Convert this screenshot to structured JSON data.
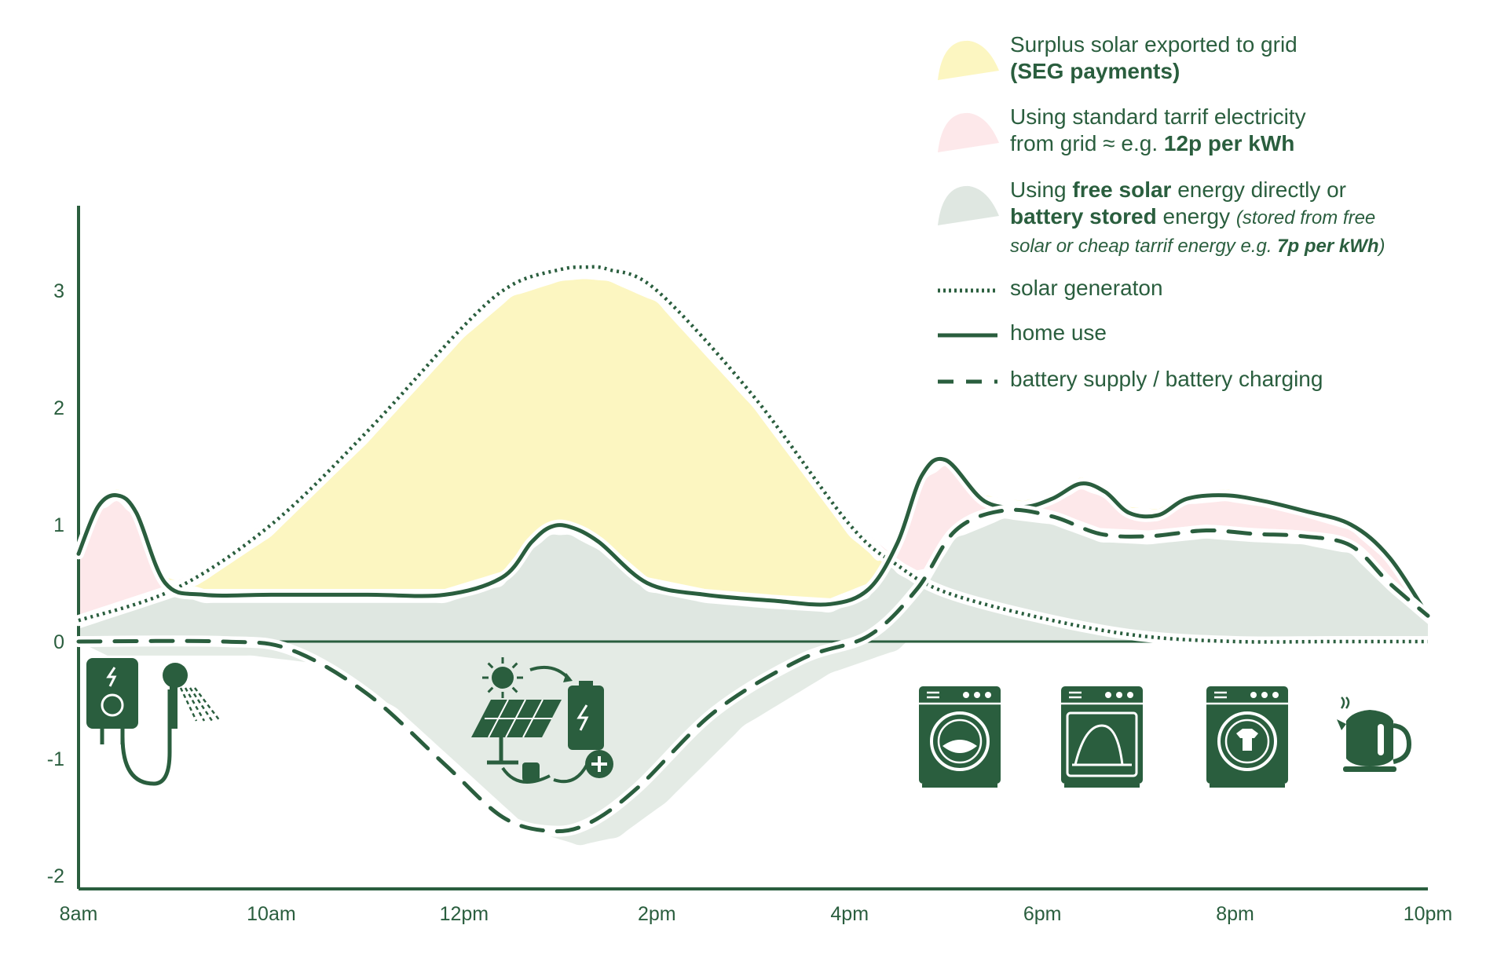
{
  "chart_data": {
    "type": "area",
    "title": "",
    "xlabel": "",
    "ylabel": "",
    "x_ticks": [
      "8am",
      "10am",
      "12pm",
      "2pm",
      "4pm",
      "6pm",
      "8pm",
      "10pm"
    ],
    "y_ticks": [
      "3",
      "2",
      "1",
      "0",
      "-1",
      "-2"
    ],
    "xlim": [
      8,
      22
    ],
    "ylim": [
      -2.1,
      3.7
    ],
    "grid": false,
    "legend_position": "top-right",
    "series": [
      {
        "name": "solar generaton",
        "style": "dotted",
        "x": [
          8,
          9,
          10,
          11,
          12,
          12.5,
          13,
          13.25,
          13.5,
          14,
          15,
          16,
          16.5,
          17,
          18,
          19,
          20,
          21,
          22
        ],
        "y": [
          0.18,
          0.45,
          1.0,
          1.8,
          2.7,
          3.05,
          3.18,
          3.2,
          3.18,
          3.0,
          2.1,
          1.0,
          0.65,
          0.42,
          0.2,
          0.05,
          0.0,
          0.0,
          0.0
        ]
      },
      {
        "name": "home use",
        "style": "solid",
        "x": [
          8,
          8.2,
          8.4,
          8.6,
          8.9,
          9.3,
          10,
          11,
          11.8,
          12.4,
          12.7,
          12.9,
          13.1,
          13.4,
          13.9,
          14.5,
          15.2,
          15.8,
          16.2,
          16.5,
          16.75,
          17.0,
          17.4,
          17.8,
          18.1,
          18.4,
          18.65,
          18.9,
          19.2,
          19.5,
          19.9,
          20.3,
          20.7,
          21.2,
          21.6,
          22
        ],
        "y": [
          0.75,
          1.15,
          1.25,
          1.1,
          0.5,
          0.4,
          0.4,
          0.4,
          0.4,
          0.55,
          0.85,
          0.98,
          0.98,
          0.85,
          0.5,
          0.4,
          0.35,
          0.32,
          0.45,
          0.85,
          1.42,
          1.55,
          1.2,
          1.15,
          1.22,
          1.35,
          1.28,
          1.1,
          1.08,
          1.22,
          1.25,
          1.2,
          1.12,
          1.0,
          0.72,
          0.22
        ]
      },
      {
        "name": "battery supply / battery charging",
        "style": "dashed",
        "x": [
          8,
          9.5,
          10.2,
          11,
          11.8,
          12.4,
          12.9,
          13.3,
          13.8,
          14.6,
          15.5,
          16.2,
          16.7,
          17.1,
          17.6,
          18.1,
          18.6,
          19.1,
          19.7,
          20.2,
          20.7,
          21.2,
          21.6,
          22
        ],
        "y": [
          0.0,
          0.0,
          -0.07,
          -0.45,
          -1.05,
          -1.5,
          -1.62,
          -1.55,
          -1.25,
          -0.6,
          -0.15,
          0.05,
          0.45,
          0.95,
          1.12,
          1.07,
          0.92,
          0.9,
          0.95,
          0.92,
          0.9,
          0.82,
          0.5,
          0.22
        ]
      }
    ]
  },
  "legend": [
    {
      "key": "yellow-area",
      "color": "#fcf6c1",
      "kind": "blob",
      "line1_parts": [
        {
          "t": "Surplus solar exported to grid",
          "b": false
        }
      ],
      "line2_parts": [
        {
          "t": "(SEG payments)",
          "b": true
        }
      ]
    },
    {
      "key": "pink-area",
      "color": "#fde8ea",
      "kind": "blob",
      "line1_parts": [
        {
          "t": "Using standard tarrif electricity",
          "b": false
        }
      ],
      "line2_parts": [
        {
          "t": "from grid ≈ e.g. ",
          "b": false
        },
        {
          "t": "12p per kWh",
          "b": true
        }
      ]
    },
    {
      "key": "green-area",
      "color": "#dfe7e1",
      "kind": "blob",
      "line1_parts": [
        {
          "t": "Using ",
          "b": false
        },
        {
          "t": "free solar",
          "b": true
        },
        {
          "t": " energy directly or",
          "b": false
        }
      ],
      "line2_parts": [
        {
          "t": "battery stored",
          "b": true
        },
        {
          "t": " energy ",
          "b": false
        },
        {
          "t": "(stored from free",
          "i": true
        }
      ],
      "line3_parts": [
        {
          "t": "solar or cheap tarrif energy e.g. ",
          "i": true
        },
        {
          "t": "7p per kWh",
          "i": true,
          "b": true
        },
        {
          "t": ")",
          "i": true
        }
      ]
    },
    {
      "key": "dotted-line",
      "kind": "dotted",
      "line1_parts": [
        {
          "t": "solar generaton",
          "b": false
        }
      ]
    },
    {
      "key": "solid-line",
      "kind": "solid",
      "line1_parts": [
        {
          "t": "home use",
          "b": false
        }
      ]
    },
    {
      "key": "dashed-line",
      "kind": "dashed",
      "line1_parts": [
        {
          "t": "battery supply / battery charging",
          "b": false
        }
      ]
    }
  ],
  "colors": {
    "line": "#2a5e3e",
    "solar_area": "#fcf6c1",
    "grid_area": "#fde8ea",
    "stored_area": "#dfe7e1"
  },
  "icons": [
    "electric-shower-icon",
    "solar-battery-charging-icon",
    "washing-machine-icon",
    "dishwasher-icon",
    "washer-dryer-icon",
    "kettle-icon"
  ]
}
